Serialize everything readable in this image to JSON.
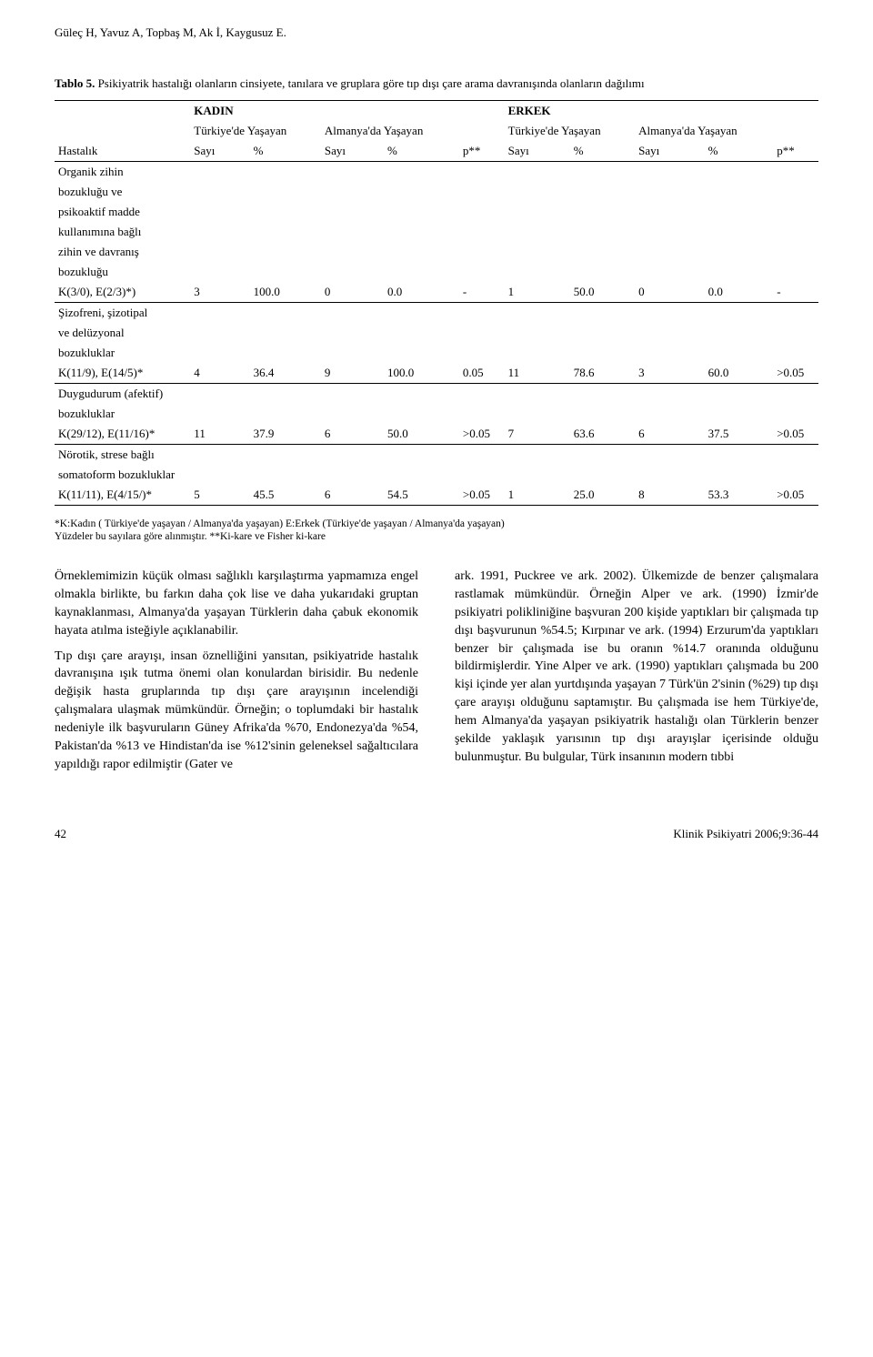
{
  "running_head": "Güleç H, Yavuz A, Topbaş M, Ak İ, Kaygusuz E.",
  "table": {
    "caption_label": "Tablo 5.",
    "caption_text": "Psikiyatrik hastalığı olanların cinsiyete, tanılara ve gruplara göre tıp dışı çare arama davranışında olanların dağılımı",
    "superheaders": {
      "left": "KADIN",
      "right": "ERKEK"
    },
    "group_headers": {
      "g1": "Türkiye'de Yaşayan",
      "g2": "Almanya'da Yaşayan",
      "g3": "Türkiye'de Yaşayan",
      "g4": "Almanya'da Yaşayan"
    },
    "col_headers": {
      "hastalik": "Hastalık",
      "sayi": "Sayı",
      "pct": "%",
      "p": "p**"
    },
    "sections": [
      {
        "label_lines": [
          "Organik zihin",
          "bozukluğu ve",
          "psikoaktif madde",
          "kullanımına bağlı",
          "zihin ve davranış",
          "bozukluğu"
        ],
        "row_label": "K(3/0), E(2/3)*)",
        "cells": [
          "3",
          "100.0",
          "0",
          "0.0",
          "-",
          "1",
          "50.0",
          "0",
          "0.0",
          "-"
        ]
      },
      {
        "label_lines": [
          "Şizofreni, şizotipal",
          "ve delüzyonal",
          "bozukluklar"
        ],
        "row_label": "K(11/9), E(14/5)*",
        "cells": [
          "4",
          "36.4",
          "9",
          "100.0",
          "0.05",
          "11",
          "78.6",
          "3",
          "60.0",
          ">0.05"
        ]
      },
      {
        "label_lines": [
          "Duygudurum (afektif)",
          "bozukluklar"
        ],
        "row_label": "K(29/12), E(11/16)*",
        "cells": [
          "11",
          "37.9",
          "6",
          "50.0",
          ">0.05",
          "7",
          "63.6",
          "6",
          "37.5",
          ">0.05"
        ]
      },
      {
        "label_lines": [
          "Nörotik, strese bağlı",
          "somatoform bozukluklar"
        ],
        "row_label": "K(11/11), E(4/15/)*",
        "cells": [
          "5",
          "45.5",
          "6",
          "54.5",
          ">0.05",
          "1",
          "25.0",
          "8",
          "53.3",
          ">0.05"
        ]
      }
    ],
    "footnote1": "*K:Kadın ( Türkiye'de yaşayan / Almanya'da yaşayan)    E:Erkek (Türkiye'de yaşayan / Almanya'da yaşayan)",
    "footnote2": "Yüzdeler bu sayılara göre alınmıştır.  **Ki-kare ve Fisher ki-kare"
  },
  "body": {
    "left": {
      "p1": "Örneklemimizin küçük olması sağlıklı karşılaştırma yapmamıza engel olmakla birlikte, bu farkın daha çok lise ve daha yukarıdaki gruptan kaynaklanması, Almanya'da yaşayan Türklerin daha çabuk ekonomik hayata atılma isteğiyle açıklanabilir.",
      "p2": "Tıp dışı çare arayışı, insan öznelliğini yansıtan, psikiyatride hastalık davranışına ışık tutma önemi olan konulardan birisidir. Bu nedenle değişik hasta gruplarında tıp dışı çare arayışının incelendiği çalışmalara ulaşmak mümkündür. Örneğin; o toplumdaki bir hastalık nedeniyle ilk başvuruların Güney Afrika'da %70, Endonezya'da %54, Pakistan'da %13 ve Hindistan'da ise %12'sinin geleneksel sağaltıcılara yapıldığı rapor edilmiştir (Gater ve"
    },
    "right": {
      "p1": "ark. 1991, Puckree ve ark. 2002). Ülkemizde de benzer çalışmalara rastlamak mümkündür. Örneğin Alper ve ark. (1990) İzmir'de psikiyatri polikliniğine başvuran 200 kişide yaptıkları bir çalışmada tıp dışı başvurunun %54.5; Kırpınar ve ark. (1994) Erzurum'da yaptıkları benzer bir çalışmada ise bu oranın %14.7 oranında olduğunu bildirmişlerdir. Yine Alper ve ark. (1990) yaptıkları çalışmada bu 200 kişi içinde yer alan yurtdışında yaşayan 7 Türk'ün 2'sinin (%29) tıp dışı çare arayışı olduğunu saptamıştır. Bu çalışmada ise hem Türkiye'de, hem Almanya'da yaşayan psikiyatrik hastalığı olan Türklerin benzer şekilde yaklaşık yarısının tıp dışı arayışlar içerisinde olduğu bulunmuştur. Bu bulgular, Türk insanının modern tıbbi"
    }
  },
  "footer": {
    "page": "42",
    "journal": "Klinik Psikiyatri 2006;9:36-44"
  },
  "colors": {
    "text": "#000000",
    "background": "#ffffff",
    "rule": "#000000"
  },
  "fonts": {
    "body_family": "Georgia, Times New Roman, serif",
    "body_size_pt": 11,
    "table_size_pt": 10,
    "footnote_size_pt": 9
  }
}
